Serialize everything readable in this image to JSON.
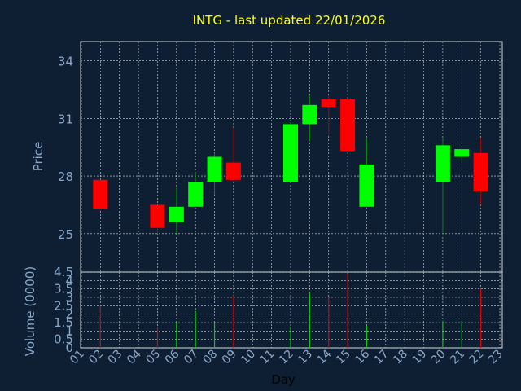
{
  "chart_data": [
    {
      "type": "candlestick",
      "title": "INTG - last updated 22/01/2026",
      "ylabel": "Price",
      "ylim": [
        23.0,
        35.0
      ],
      "yticks": [
        "25",
        "28",
        "31",
        "34"
      ],
      "grid": true,
      "ohlc": [
        {
          "day": "02",
          "open": 27.8,
          "high": 27.8,
          "low": 26.2,
          "close": 26.3
        },
        {
          "day": "05",
          "open": 26.5,
          "high": 26.5,
          "low": 25.0,
          "close": 25.3
        },
        {
          "day": "06",
          "open": 25.6,
          "high": 27.4,
          "low": 25.0,
          "close": 26.4
        },
        {
          "day": "07",
          "open": 26.4,
          "high": 28.2,
          "low": 26.4,
          "close": 27.7
        },
        {
          "day": "08",
          "open": 27.7,
          "high": 29.2,
          "low": 27.0,
          "close": 29.0
        },
        {
          "day": "09",
          "open": 28.7,
          "high": 30.5,
          "low": 27.8,
          "close": 27.8
        },
        {
          "day": "12",
          "open": 27.7,
          "high": 30.8,
          "low": 27.7,
          "close": 30.7
        },
        {
          "day": "13",
          "open": 30.7,
          "high": 32.2,
          "low": 29.8,
          "close": 31.7
        },
        {
          "day": "14",
          "open": 32.0,
          "high": 32.2,
          "low": 30.1,
          "close": 31.6
        },
        {
          "day": "15",
          "open": 32.0,
          "high": 32.0,
          "low": 29.3,
          "close": 29.3
        },
        {
          "day": "16",
          "open": 26.4,
          "high": 30.0,
          "low": 26.4,
          "close": 28.6
        },
        {
          "day": "20",
          "open": 27.7,
          "high": 30.0,
          "low": 24.9,
          "close": 29.6
        },
        {
          "day": "21",
          "open": 29.0,
          "high": 29.5,
          "low": 28.7,
          "close": 29.4
        },
        {
          "day": "22",
          "open": 29.2,
          "high": 30.0,
          "low": 26.5,
          "close": 27.2
        }
      ]
    },
    {
      "type": "bar",
      "ylabel": "Volume (0000)",
      "xlabel": "Day",
      "ylim": [
        0,
        4.5
      ],
      "yticks": [
        "0",
        "0.5",
        "1",
        "1.5",
        "2",
        "2.5",
        "3",
        "3.5",
        "4",
        "4.5"
      ],
      "categories": [
        "01",
        "02",
        "03",
        "04",
        "05",
        "06",
        "07",
        "08",
        "09",
        "10",
        "11",
        "12",
        "13",
        "14",
        "15",
        "16",
        "17",
        "18",
        "19",
        "20",
        "21",
        "22",
        "23"
      ],
      "values": [
        {
          "day": "02",
          "value": 2.5,
          "direction": "down"
        },
        {
          "day": "05",
          "value": 1.2,
          "direction": "down"
        },
        {
          "day": "06",
          "value": 1.5,
          "direction": "up"
        },
        {
          "day": "07",
          "value": 2.2,
          "direction": "up"
        },
        {
          "day": "08",
          "value": 1.5,
          "direction": "up"
        },
        {
          "day": "09",
          "value": 3.1,
          "direction": "down"
        },
        {
          "day": "12",
          "value": 1.2,
          "direction": "up"
        },
        {
          "day": "13",
          "value": 3.3,
          "direction": "up"
        },
        {
          "day": "14",
          "value": 3.0,
          "direction": "down"
        },
        {
          "day": "15",
          "value": 4.4,
          "direction": "down"
        },
        {
          "day": "16",
          "value": 1.3,
          "direction": "up"
        },
        {
          "day": "20",
          "value": 1.6,
          "direction": "up"
        },
        {
          "day": "21",
          "value": 1.6,
          "direction": "up"
        },
        {
          "day": "22",
          "value": 3.5,
          "direction": "down"
        }
      ]
    }
  ],
  "colors": {
    "background": "#0f1f33",
    "plot_background": "#0f1f33",
    "grid": "#ffffff",
    "up": "#00ff00",
    "down": "#ff0000",
    "title": "#ffff00",
    "ticks": "#8aa8c8",
    "xlabel": "#000000"
  }
}
